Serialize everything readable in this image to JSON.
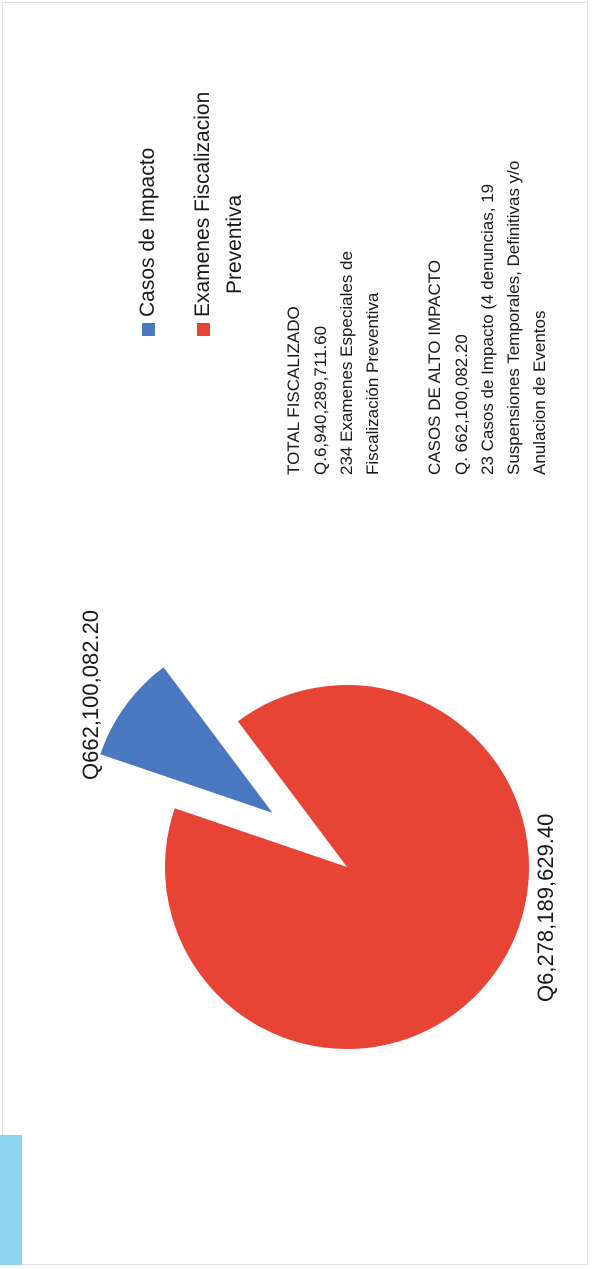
{
  "colors": {
    "casos": "#4a78c0",
    "examenes": "#e84436",
    "tab": "#8fd3ee"
  },
  "chart_data": {
    "type": "pie",
    "title": "",
    "slices": [
      {
        "label": "Casos de Impacto",
        "value": 662100082.2,
        "display": "Q662,100,082.20",
        "color": "#4a78c0",
        "exploded": true
      },
      {
        "label": "Examenes Fiscalizacion Preventiva",
        "value": 6278189629.4,
        "display": "Q6,278,189,629.40",
        "color": "#e84436",
        "exploded": false
      }
    ],
    "legend": {
      "placement": "right",
      "items": [
        {
          "line1": "Casos de Impacto",
          "line2": ""
        },
        {
          "line1": "Examenes Fiscalizacion",
          "line2": "Preventiva"
        }
      ]
    }
  },
  "summary": {
    "total": {
      "heading": "TOTAL FISCALIZADO",
      "lines": [
        "Q.6,940,289,711.60",
        "234 Examenes Especiales de",
        "Fiscalización Preventiva"
      ]
    },
    "alto": {
      "heading": "CASOS DE ALTO IMPACTO",
      "lines": [
        "Q. 662,100,082.20",
        "23 Casos de Impacto (4 denuncias, 19",
        "Suspensiones Temporales,  Definitivas y/o",
        "Anulacion de Eventos"
      ]
    }
  }
}
